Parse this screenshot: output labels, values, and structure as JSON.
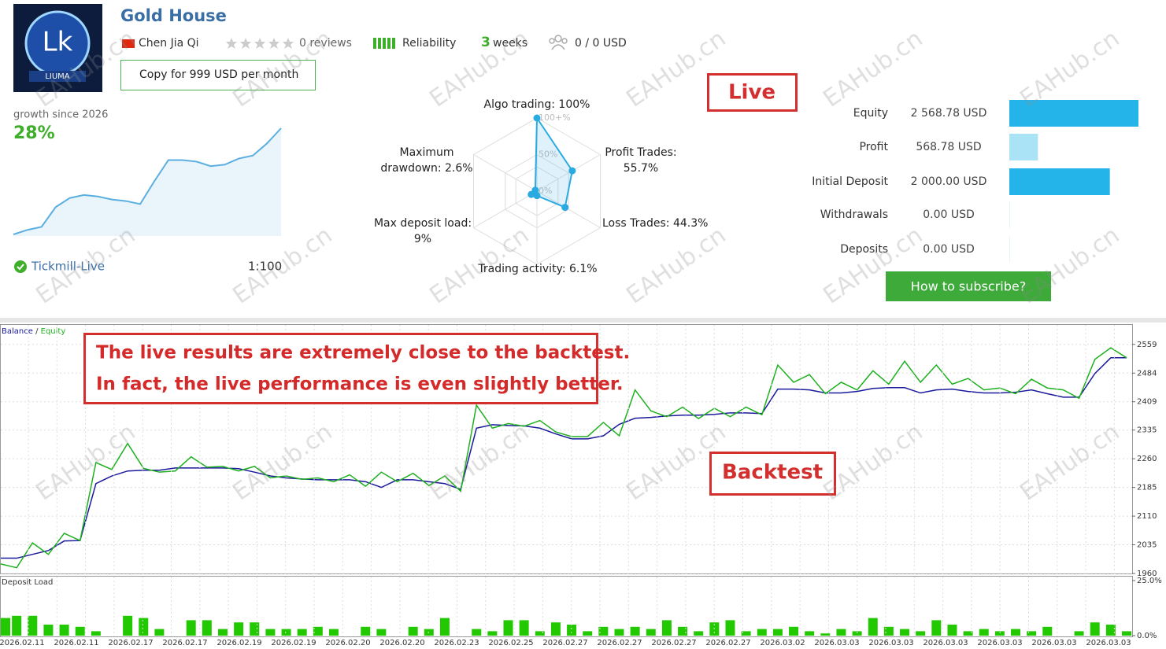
{
  "header": {
    "title": "Gold House",
    "author": "Chen Jia Qi",
    "reviews": "0 reviews",
    "reliability": "Reliability",
    "weeks_count": "3",
    "weeks": "weeks",
    "subscribers": "0 / 0 USD",
    "copy_button": "Copy for 999 USD per month"
  },
  "logo": {
    "mark": "Lk",
    "name": "LIUMA"
  },
  "growth": {
    "label": "growth since 2026",
    "value": "28%",
    "values": [
      0,
      3,
      5,
      18,
      24,
      26,
      25,
      23,
      22,
      20,
      35,
      49,
      49,
      48,
      45,
      46,
      50,
      52,
      60,
      70
    ]
  },
  "broker": {
    "name": "Tickmill-Live",
    "leverage": "1:100"
  },
  "subscribe_button": "How to subscribe?",
  "annotations": {
    "live": "Live",
    "backtest": "Backtest",
    "note": [
      "The live results are extremely close to the backtest.",
      "In fact, the live performance is even slightly better."
    ]
  },
  "watermark": "EAHub.cn",
  "chart_data": [
    {
      "type": "radar",
      "categories": [
        "Algo trading: 100%",
        "Profit Trades: 55.7%",
        "Loss Trades: 44.3%",
        "Trading activity: 6.1%",
        "Max deposit load: 9%",
        "Maximum drawdown: 2.6%"
      ],
      "values": [
        100,
        55.7,
        44.3,
        6.1,
        9,
        2.6
      ],
      "color": "#29abe2",
      "rlim": [
        0,
        100
      ],
      "rticks": [
        {
          "value": 0,
          "label": "0%"
        },
        {
          "value": 50,
          "label": "50%"
        },
        {
          "value": 100,
          "label": "100+%"
        }
      ]
    },
    {
      "type": "bar",
      "orientation": "horizontal",
      "categories": [
        "Equity",
        "Profit",
        "Initial Deposit",
        "Withdrawals",
        "Deposits"
      ],
      "values": [
        2568.78,
        568.78,
        2000,
        0,
        0
      ],
      "value_labels": [
        "2 568.78 USD",
        "568.78 USD",
        "2 000.00 USD",
        "0.00 USD",
        "0.00 USD"
      ],
      "colors": [
        "#25b4e9",
        "#aae3f6",
        "#25b4e9",
        "#25b4e9",
        "#25b4e9"
      ]
    },
    {
      "type": "line",
      "legend_separator": "/",
      "xlabels": [
        "2026.02.11",
        "2026.02.11",
        "2026.02.17",
        "2026.02.17",
        "2026.02.19",
        "2026.02.19",
        "2026.02.20",
        "2026.02.20",
        "2026.02.23",
        "2026.02.25",
        "2026.02.27",
        "2026.02.27",
        "2026.02.27",
        "2026.02.27",
        "2026.03.02",
        "2026.03.03",
        "2026.03.03",
        "2026.03.03",
        "2026.03.03",
        "2026.03.03",
        "2026.03.03"
      ],
      "series": [
        {
          "name": "Balance",
          "color": "#1a1a9c",
          "values": [
            2000,
            2000,
            2010,
            2020,
            2045,
            2046,
            2195,
            2215,
            2228,
            2230,
            2230,
            2236,
            2236,
            2236,
            2236,
            2234,
            2225,
            2215,
            2210,
            2207,
            2205,
            2205,
            2205,
            2200,
            2185,
            2205,
            2205,
            2200,
            2195,
            2180,
            2340,
            2349,
            2347,
            2346,
            2340,
            2325,
            2312,
            2312,
            2320,
            2350,
            2366,
            2368,
            2372,
            2374,
            2374,
            2376,
            2380,
            2380,
            2378,
            2442,
            2442,
            2440,
            2432,
            2432,
            2436,
            2444,
            2446,
            2446,
            2432,
            2440,
            2442,
            2436,
            2432,
            2432,
            2434,
            2440,
            2430,
            2421,
            2421,
            2483,
            2524,
            2524
          ]
        },
        {
          "name": "Equity",
          "color": "#1fb01f",
          "values": [
            1985,
            1975,
            2040,
            2010,
            2065,
            2046,
            2250,
            2232,
            2300,
            2235,
            2225,
            2228,
            2265,
            2238,
            2240,
            2228,
            2240,
            2210,
            2215,
            2206,
            2210,
            2200,
            2218,
            2188,
            2225,
            2200,
            2222,
            2190,
            2215,
            2175,
            2400,
            2340,
            2352,
            2345,
            2360,
            2330,
            2318,
            2318,
            2355,
            2320,
            2440,
            2385,
            2370,
            2395,
            2365,
            2392,
            2370,
            2395,
            2375,
            2505,
            2460,
            2480,
            2430,
            2460,
            2440,
            2490,
            2455,
            2515,
            2460,
            2505,
            2455,
            2470,
            2440,
            2445,
            2430,
            2468,
            2445,
            2440,
            2418,
            2520,
            2550,
            2524
          ]
        }
      ],
      "ylim": [
        1960,
        2610
      ],
      "yticks": [
        1960,
        2035,
        2110,
        2185,
        2260,
        2335,
        2409,
        2484,
        2559
      ],
      "grid": true
    },
    {
      "type": "bar",
      "orientation": "vertical",
      "title": "Deposit Load",
      "color": "#22c900",
      "values": [
        8,
        9,
        9,
        5,
        5,
        4,
        2,
        0,
        9,
        8,
        3,
        0,
        7,
        7,
        3,
        6,
        6,
        3,
        3,
        3,
        4,
        3,
        0,
        4,
        3,
        0,
        4,
        3,
        8,
        0,
        3,
        2,
        7,
        7,
        2,
        6,
        5,
        2,
        4,
        3,
        4,
        3,
        7,
        4,
        2,
        6,
        7,
        2,
        3,
        3,
        4,
        2,
        1,
        3,
        2,
        8,
        4,
        3,
        2,
        7,
        5,
        2,
        3,
        2,
        3,
        2,
        4,
        0,
        2,
        6,
        5,
        2
      ],
      "ylim": [
        0,
        25
      ],
      "yticks": [
        {
          "value": 25,
          "label": "25.0%"
        },
        {
          "value": 0,
          "label": "0.0%"
        }
      ]
    }
  ]
}
